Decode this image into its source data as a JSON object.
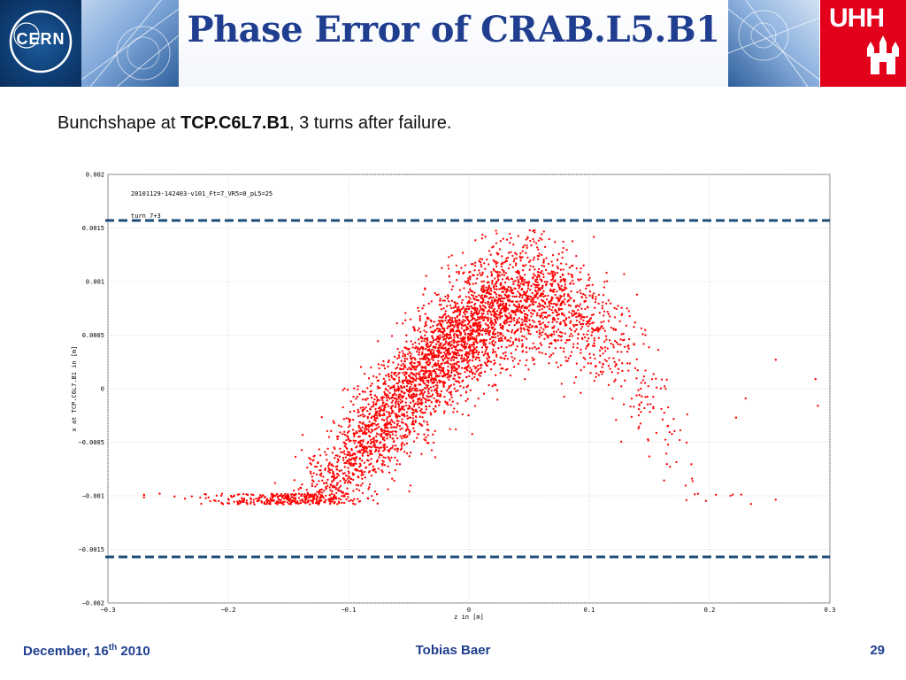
{
  "header": {
    "title": "Phase Error of CRAB.L5.B1",
    "cern_logo_text": "CERN",
    "uhh_logo_text": "UHH"
  },
  "subtitle": {
    "prefix": "Bunchshape at ",
    "bold": "TCP.C6L7.B1",
    "suffix": ", 3 turns after failure."
  },
  "footer": {
    "date_prefix": "December, 16",
    "date_sup": "th",
    "date_suffix": " 2010",
    "author": "Tobias Baer",
    "page": "29"
  },
  "colors": {
    "title": "#1f3e8f",
    "points": "#ff0000",
    "limit_lines": "#1f4e79",
    "uhh_red": "#e2001a"
  },
  "chart_data": {
    "type": "scatter",
    "annotations": [
      "20101129-142403-v101_Ft=7_VR5=0_pL5=25",
      "turn 7+3"
    ],
    "xlabel": "z in [m]",
    "ylabel": "x at TCP.C6L7.B1 in [m]",
    "xlim": [
      -0.3,
      0.3
    ],
    "ylim": [
      -0.002,
      0.002
    ],
    "x_ticks": [
      "-0.3",
      "-0.2",
      "-0.1",
      "0",
      "0.1",
      "0.2",
      "0.3"
    ],
    "y_ticks": [
      "0.002",
      "0.0015",
      "0.001",
      "0.0005",
      "0",
      "-0.0005",
      "-0.001",
      "-0.0015",
      "-0.002"
    ],
    "grid": true,
    "limit_lines_y": [
      0.00157,
      -0.00157
    ],
    "point_count": 4200,
    "distribution": {
      "z_mean": -0.015,
      "z_std": 0.075,
      "x_slope_per_m": 0.0105,
      "x_curvature": -0.016,
      "x_center": 0.00055,
      "x_noise_std": 0.00028
    },
    "outliers": [
      {
        "x": -0.257,
        "y": -0.00098
      },
      {
        "x": -0.215,
        "y": -0.00105
      },
      {
        "x": -0.2,
        "y": -0.00103
      },
      {
        "x": 0.222,
        "y": -0.00027
      },
      {
        "x": 0.29,
        "y": -0.00016
      },
      {
        "x": 0.288,
        "y": 9e-05
      },
      {
        "x": 0.255,
        "y": 0.00027
      },
      {
        "x": 0.23,
        "y": -9e-05
      }
    ]
  }
}
